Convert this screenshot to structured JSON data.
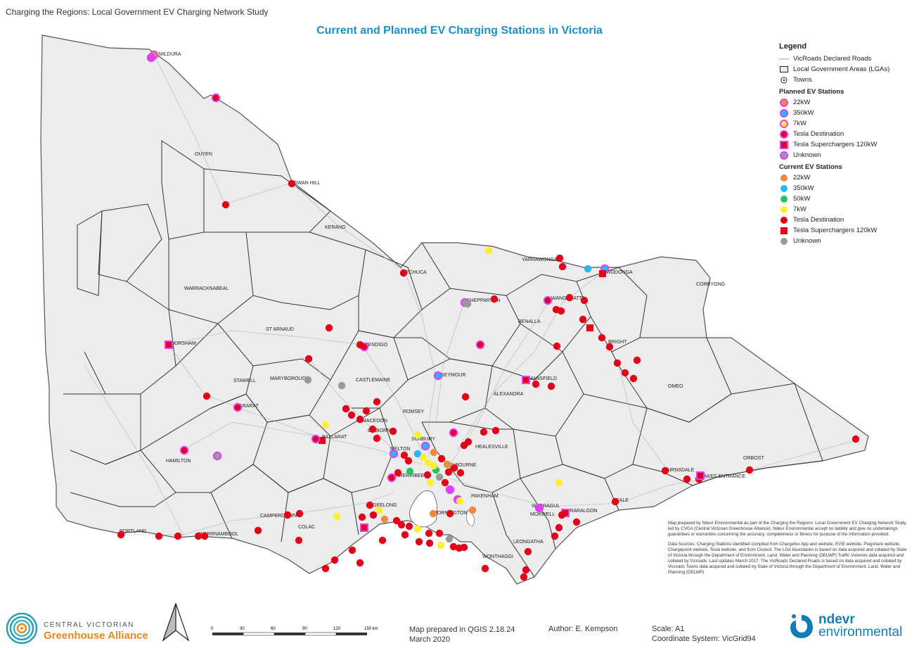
{
  "header": {
    "subtitle": "Charging the Regions: Local Government EV Charging Network Study",
    "title": "Current and Planned EV Charging Stations in Victoria"
  },
  "towns": [
    "MILDURA",
    "OUYEN",
    "SWAN HILL",
    "KERANG",
    "ECHUCA",
    "YARRAWONGA",
    "WODONGA",
    "CORRYONG",
    "SHEPPARTON",
    "WANGARATTA",
    "BENALLA",
    "BRIGHT",
    "WARRACKNABEAL",
    "ST ARNAUD",
    "HORSHAM",
    "BENDIGO",
    "SEYMOUR",
    "MANSFIELD",
    "OMEO",
    "STAWELL",
    "MARYBOROUGH",
    "CASTLEMAINE",
    "ALEXANDRA",
    "ARARAT",
    "ROMSEY",
    "MACEDON",
    "GISBORNE",
    "BALLARAT",
    "SUNBURY",
    "HEALESVILLE",
    "HAMILTON",
    "MELTON",
    "MELBOURNE",
    "WERRIBEE",
    "BAIRNSDALE",
    "LAKES ENTRANCE",
    "ORBOST",
    "PAKENHAM",
    "GEELONG",
    "SALE",
    "WARRAGUL",
    "TRARALGON",
    "MORWELL",
    "CAMPERDOWN",
    "MORNINGTON",
    "COLAC",
    "PORTLAND",
    "WARRNAMBOOL",
    "LEONGATHA",
    "WONTHAGGI"
  ],
  "legend": {
    "title": "Legend",
    "roads": "VicRoads Declared Roads",
    "lgas": "Local Government Areas (LGAs)",
    "towns": "Towns",
    "planned_heading": "Planned EV Stations",
    "planned": [
      {
        "label": "22kW",
        "color": "#f08a3c",
        "shape": "circle"
      },
      {
        "label": "350kW",
        "color": "#29b6f6",
        "shape": "circle"
      },
      {
        "label": "7kW",
        "color": "#ffee33",
        "shape": "circle"
      },
      {
        "label": "Tesla Destination",
        "color": "#e3001b",
        "shape": "circle"
      },
      {
        "label": "Tesla Superchargers 120kW",
        "color": "#e3001b",
        "shape": "square"
      },
      {
        "label": "Unknown",
        "color": "#999999",
        "shape": "circle"
      }
    ],
    "current_heading": "Current EV Stations",
    "current": [
      {
        "label": "22kW",
        "color": "#f08a3c",
        "shape": "circle"
      },
      {
        "label": "350kW",
        "color": "#29b6f6",
        "shape": "circle"
      },
      {
        "label": "50kW",
        "color": "#22c55e",
        "shape": "circle"
      },
      {
        "label": "7kW",
        "color": "#ffee33",
        "shape": "circle"
      },
      {
        "label": "Tesla Destination",
        "color": "#e3001b",
        "shape": "circle"
      },
      {
        "label": "Tesla Superchargers 120kW",
        "color": "#e3001b",
        "shape": "square"
      },
      {
        "label": "Unknown",
        "color": "#999999",
        "shape": "circle"
      }
    ]
  },
  "disclaimer": [
    "Map prepared by Ndevr Environmental as part of the Charging the Regions: Local Government EV Charging Network Study, led by CVGA (Central Victorian Greenhouse Alliance). Ndevr Environmental accept no liability and give no undertakings guarantees or warranties concerning the accuracy, completeness or fitness for purpose of the information provided.",
    "Data Sources: Charging Stations identified compiled from Chargefox App and website, EVIE website, Plugshare website, Chargepoint website, Tesla website, and from Council. The LGA boundaries is based on data acquired and collated by State of Victoria through the Department of Environment, Land, Water and Planning (DELWP) Traffic Volumes data acquired and collated by Vicroads. Last updates March 2017. The VicRoads Declared Roads is based on data acquired and collated by Vicroads Towns data acquired and collated by State of Victoria through the Department of Environment, Land, Water and Planning (DELWP)"
  ],
  "footer": {
    "cvga_line1": "CENTRAL VICTORIAN",
    "cvga_line2": "Greenhouse Alliance",
    "scale_labels": [
      "0",
      "30",
      "60",
      "90",
      "120",
      "150 km"
    ],
    "qgis_line1": "Map prepared in QGIS 2.18.24",
    "qgis_line2": "March 2020",
    "author": "Author: E. Kempson",
    "scale": "Scale: A1",
    "coord": "Coordinate System: VicGrid94",
    "ndevr_line1": "ndevr",
    "ndevr_line2": "environmental"
  },
  "colors": {
    "title": "#1a8fc8",
    "planned_outline": "#e040fb",
    "land": "#ececec",
    "lga_border": "#333333",
    "road": "#b0b0b0"
  }
}
